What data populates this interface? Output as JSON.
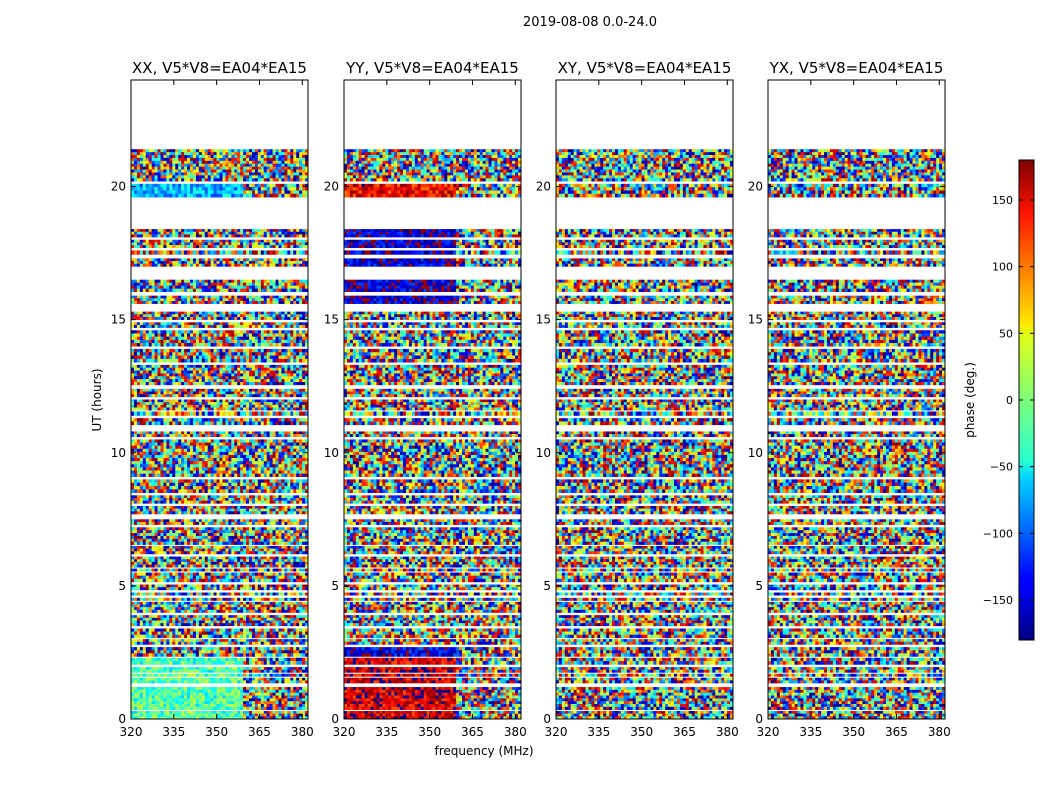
{
  "chart_data": {
    "type": "heatmap",
    "suptitle": "2019-08-08 0.0-24.0",
    "xlabel": "frequency (MHz)",
    "ylabel": "UT (hours)",
    "xlim": [
      320,
      382
    ],
    "ylim": [
      0,
      24
    ],
    "xticks": [
      320,
      335,
      350,
      365,
      380
    ],
    "yticks": [
      0,
      5,
      10,
      15,
      20
    ],
    "colorbar": {
      "label": "phase (deg.)",
      "range": [
        -180,
        180
      ],
      "ticks": [
        150,
        100,
        50,
        0,
        -50,
        -100,
        -150
      ],
      "tick_labels": [
        "150",
        "100",
        "50",
        "0",
        "−50",
        "−100",
        "−150"
      ],
      "colormap": "jet"
    },
    "band_edges_ut": [
      [
        0.0,
        0.3
      ],
      [
        0.35,
        1.2
      ],
      [
        1.35,
        1.55
      ],
      [
        1.6,
        1.7
      ],
      [
        1.75,
        1.95
      ],
      [
        2.05,
        2.3
      ],
      [
        2.35,
        2.7
      ],
      [
        2.8,
        3.0
      ],
      [
        3.05,
        3.4
      ],
      [
        3.5,
        3.9
      ],
      [
        4.0,
        4.4
      ],
      [
        4.45,
        4.55
      ],
      [
        4.65,
        4.75
      ],
      [
        4.85,
        5.05
      ],
      [
        5.15,
        5.5
      ],
      [
        5.55,
        5.65
      ],
      [
        5.7,
        6.1
      ],
      [
        6.2,
        6.5
      ],
      [
        6.55,
        7.2
      ],
      [
        7.3,
        7.5
      ],
      [
        7.7,
        8.0
      ],
      [
        8.1,
        8.4
      ],
      [
        8.5,
        9.0
      ],
      [
        9.1,
        10.5
      ],
      [
        10.6,
        10.8
      ],
      [
        11.05,
        11.3
      ],
      [
        11.4,
        11.55
      ],
      [
        11.6,
        12.0
      ],
      [
        12.1,
        12.4
      ],
      [
        12.55,
        13.3
      ],
      [
        13.4,
        13.9
      ],
      [
        14.0,
        14.6
      ],
      [
        14.7,
        14.9
      ],
      [
        15.0,
        15.3
      ],
      [
        15.6,
        15.9
      ],
      [
        16.05,
        16.5
      ],
      [
        17.0,
        17.3
      ],
      [
        17.45,
        17.6
      ],
      [
        17.7,
        18.0
      ],
      [
        18.1,
        18.4
      ],
      [
        19.6,
        20.1
      ],
      [
        20.2,
        21.4
      ]
    ],
    "panels": [
      {
        "title": "XX, V5*V8=EA04*EA15",
        "correlation": "XX"
      },
      {
        "title": "YY, V5*V8=EA04*EA15",
        "correlation": "YY"
      },
      {
        "title": "XY, V5*V8=EA04*EA15",
        "correlation": "XY"
      },
      {
        "title": "YX, V5*V8=EA04*EA15",
        "correlation": "YX"
      }
    ]
  }
}
